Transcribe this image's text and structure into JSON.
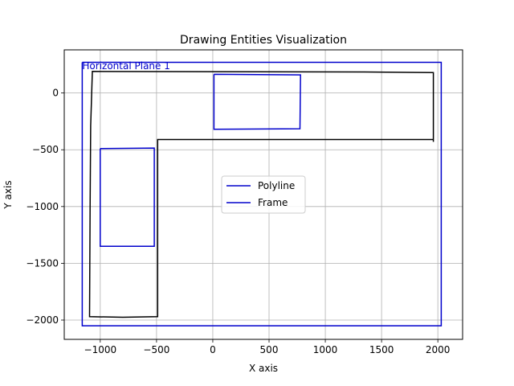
{
  "chart_data": {
    "type": "line",
    "title": "Drawing Entities Visualization",
    "xlabel": "X axis",
    "ylabel": "Y axis",
    "xlim": [
      -1320,
      2220
    ],
    "ylim": [
      -2170,
      380
    ],
    "xticks": [
      -1000,
      -500,
      0,
      500,
      1000,
      1500,
      2000
    ],
    "yticks": [
      -2000,
      -1500,
      -1000,
      -500,
      0
    ],
    "grid": true,
    "legend_position": "center",
    "legend": [
      {
        "label": "Polyline",
        "color": "#0000cc"
      },
      {
        "label": "Frame",
        "color": "#0000cc"
      }
    ],
    "annotations": [
      {
        "text": "Horizontal Plane 1",
        "x": -1160,
        "y": 240,
        "color": "#0000cc"
      }
    ],
    "series": [
      {
        "id": "outline",
        "color": "#000000",
        "points": [
          [
            1960,
            -430
          ],
          [
            1960,
            180
          ],
          [
            1350,
            185
          ],
          [
            -1070,
            190
          ],
          [
            -1085,
            -290
          ],
          [
            -1090,
            -1000
          ],
          [
            -1095,
            -1970
          ],
          [
            -800,
            -1975
          ],
          [
            -490,
            -1970
          ],
          [
            -490,
            -410
          ],
          [
            0,
            -410
          ],
          [
            1960,
            -410
          ]
        ]
      },
      {
        "id": "rect-top",
        "color": "#0000cc",
        "points": [
          [
            10,
            165
          ],
          [
            780,
            160
          ],
          [
            775,
            -315
          ],
          [
            10,
            -320
          ],
          [
            10,
            165
          ]
        ]
      },
      {
        "id": "rect-left",
        "color": "#0000cc",
        "points": [
          [
            -1000,
            -490
          ],
          [
            -520,
            -485
          ],
          [
            -520,
            -1350
          ],
          [
            -1000,
            -1350
          ],
          [
            -1000,
            -490
          ]
        ]
      },
      {
        "id": "frame",
        "color": "#0000cc",
        "points": [
          [
            -1160,
            270
          ],
          [
            2030,
            270
          ],
          [
            2030,
            -2050
          ],
          [
            -1160,
            -2050
          ],
          [
            -1160,
            270
          ]
        ]
      }
    ]
  }
}
